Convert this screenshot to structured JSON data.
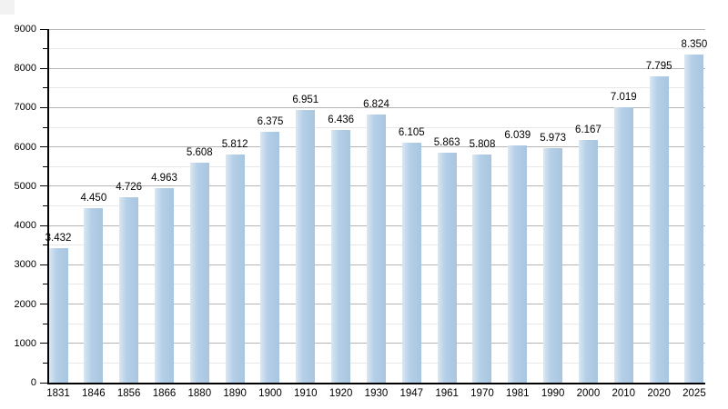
{
  "chart_data": {
    "type": "bar",
    "title": "",
    "xlabel": "",
    "ylabel": "",
    "categories": [
      "1831",
      "1846",
      "1856",
      "1866",
      "1880",
      "1890",
      "1900",
      "1910",
      "1920",
      "1930",
      "1947",
      "1961",
      "1970",
      "1981",
      "1990",
      "2000",
      "2010",
      "2020",
      "2025"
    ],
    "values": [
      3432,
      4450,
      4726,
      4963,
      5608,
      5812,
      6375,
      6951,
      6436,
      6824,
      6105,
      5863,
      5808,
      6039,
      5973,
      6167,
      7019,
      7795,
      8350
    ],
    "value_labels": [
      "3.432",
      "4.450",
      "4.726",
      "4.963",
      "5.608",
      "5.812",
      "6.375",
      "6.951",
      "6.436",
      "6.824",
      "6.105",
      "5.863",
      "5.808",
      "6.039",
      "5.973",
      "6.167",
      "7.019",
      "7.795",
      "8.350"
    ],
    "ylim": [
      0,
      9000
    ],
    "y_major_step": 1000,
    "y_minor_step": 500,
    "y_tick_labels": [
      "0",
      "1000",
      "2000",
      "3000",
      "4000",
      "5000",
      "6000",
      "7000",
      "8000",
      "9000"
    ],
    "grid": "horizontal",
    "legend": "none",
    "colors": {
      "bar_main": "#aecbe3",
      "bar_light": "#dae7f3",
      "bar_mid": "#b4cfe7",
      "bar_right": "#a9c6e0",
      "major_grid": "#b5b5b5",
      "minor_grid": "#e8e8e8",
      "axis": "#000000",
      "text": "#000000",
      "background": "#ffffff"
    }
  }
}
